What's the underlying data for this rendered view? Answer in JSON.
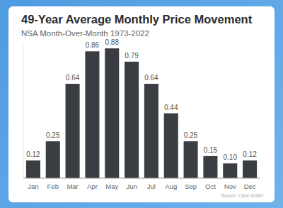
{
  "chart_data": {
    "type": "bar",
    "title": "49-Year Average Monthly Price Movement",
    "subtitle": "NSA Month-Over-Month 1973-2022",
    "categories": [
      "Jan",
      "Feb",
      "Mar",
      "Apr",
      "May",
      "Jun",
      "Jul",
      "Aug",
      "Sep",
      "Oct",
      "Nov",
      "Dec"
    ],
    "values": [
      0.12,
      0.25,
      0.64,
      0.86,
      0.88,
      0.79,
      0.64,
      0.44,
      0.25,
      0.15,
      0.1,
      0.12
    ],
    "value_labels": [
      "0.12",
      "0.25",
      "0.64",
      "0.86",
      "0.88",
      "0.79",
      "0.64",
      "0.44",
      "0.25",
      "0.15",
      "0.10",
      "0.12"
    ],
    "color": "#3a3d42",
    "ylim": [
      0,
      0.9
    ],
    "grid": false,
    "data_labels": true,
    "tick_labels": "x",
    "annotations": [
      "Source: Case-Shiller"
    ]
  }
}
